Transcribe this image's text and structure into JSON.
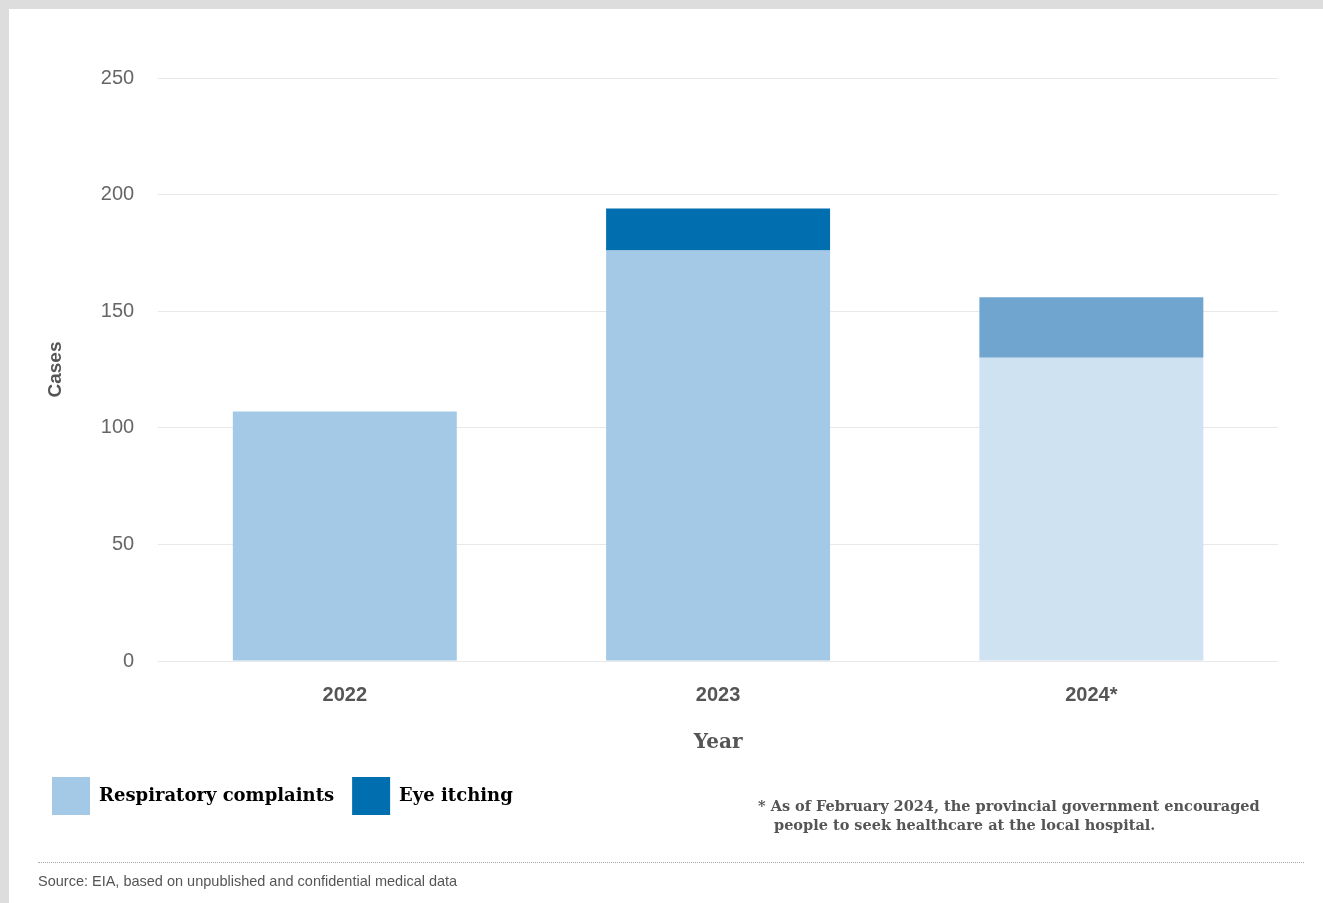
{
  "chart_data": {
    "type": "bar",
    "stacked": true,
    "xlabel": "Year",
    "ylabel": "Cases",
    "categories": [
      "2022",
      "2023",
      "2024*"
    ],
    "series": [
      {
        "name": "Respiratory complaints",
        "color": "#a3c9e6",
        "colors": [
          "#a3c9e6",
          "#a3c9e6",
          "#cfe2f1"
        ],
        "values": [
          107,
          176,
          130
        ]
      },
      {
        "name": "Eye itching",
        "color": "#006eaf",
        "colors": [
          "#006eaf",
          "#006eaf",
          "#6fa5cf"
        ],
        "values": [
          0,
          18,
          26
        ]
      }
    ],
    "ylim": [
      0,
      250
    ],
    "yticks": [
      0,
      50,
      100,
      150,
      200,
      250
    ],
    "grid": "y",
    "legend": "bottom left",
    "annotations": [
      "* As of February 2024, the provincial government encouraged people to seek healthcare at the local hospital.",
      "Source: EIA, based on unpublished and confidential medical data"
    ]
  }
}
